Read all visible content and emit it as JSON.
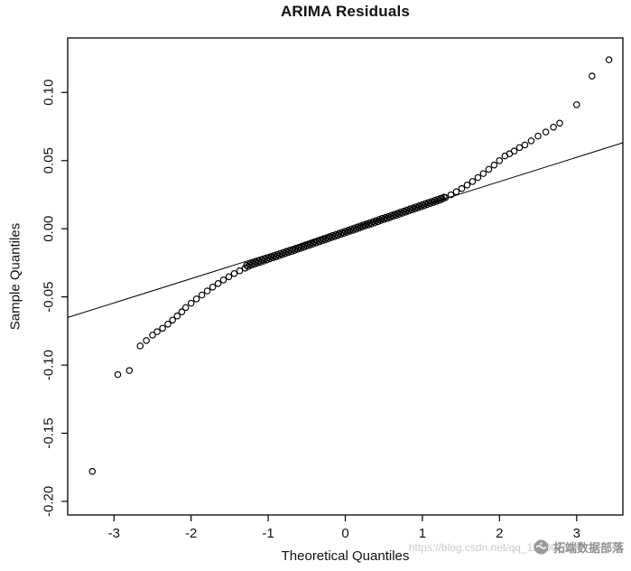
{
  "figure": {
    "title": "ARIMA Residuals"
  },
  "chart_data": {
    "type": "scatter",
    "subtype": "qq-plot",
    "title": "ARIMA Residuals",
    "xlabel": "Theoretical Quantiles",
    "ylabel": "Sample Quantiles",
    "xlim": [
      -3.6,
      3.6
    ],
    "ylim": [
      -0.21,
      0.14
    ],
    "grid": false,
    "legend": "none",
    "marker": "open-circle",
    "marker_color": "#000000",
    "x_ticks": [
      -3,
      -2,
      -1,
      0,
      1,
      2,
      3
    ],
    "x_tick_labels": [
      "-3",
      "-2",
      "-1",
      "0",
      "1",
      "2",
      "3"
    ],
    "y_ticks": [
      0.1,
      0.05,
      0,
      -0.05,
      -0.1,
      -0.15,
      -0.2
    ],
    "y_tick_labels": [
      "0.10",
      "0.05",
      "0.00",
      "-0.05",
      "-0.10",
      "-0.15",
      "-0.20"
    ],
    "reference_line": {
      "slope": 0.0178,
      "intercept": -0.001,
      "color": "#000000"
    },
    "points": [
      [
        -3.28,
        -0.178
      ],
      [
        -2.95,
        -0.107
      ],
      [
        -2.8,
        -0.104
      ],
      [
        -2.66,
        -0.086
      ],
      [
        -2.58,
        -0.082
      ],
      [
        -2.5,
        -0.078
      ],
      [
        -2.44,
        -0.0755
      ],
      [
        -2.37,
        -0.073
      ],
      [
        -2.3,
        -0.07
      ],
      [
        -2.24,
        -0.067
      ],
      [
        -2.18,
        -0.064
      ],
      [
        -2.12,
        -0.061
      ],
      [
        -2.07,
        -0.0578
      ],
      [
        -2.0,
        -0.0546
      ],
      [
        -1.93,
        -0.0515
      ],
      [
        -1.86,
        -0.0486
      ],
      [
        -1.79,
        -0.0456
      ],
      [
        -1.72,
        -0.0428
      ],
      [
        -1.65,
        -0.0402
      ],
      [
        -1.58,
        -0.0376
      ],
      [
        -1.51,
        -0.0352
      ],
      [
        -1.44,
        -0.0329
      ],
      [
        -1.37,
        -0.0308
      ],
      [
        -1.3,
        -0.0289
      ],
      [
        -1.26,
        -0.0278
      ],
      [
        -1.22,
        -0.0268
      ],
      [
        -1.18,
        -0.026
      ],
      [
        -1.14,
        -0.0252
      ],
      [
        -1.1,
        -0.0245
      ],
      [
        -1.06,
        -0.0237
      ],
      [
        -1.02,
        -0.0229
      ],
      [
        -0.98,
        -0.0221
      ],
      [
        -0.94,
        -0.0213
      ],
      [
        -0.9,
        -0.0206
      ],
      [
        -0.86,
        -0.0198
      ],
      [
        -0.82,
        -0.019
      ],
      [
        -0.78,
        -0.0182
      ],
      [
        -0.74,
        -0.0174
      ],
      [
        -0.7,
        -0.0167
      ],
      [
        -0.66,
        -0.0159
      ],
      [
        -0.62,
        -0.0151
      ],
      [
        -0.58,
        -0.0143
      ],
      [
        -0.54,
        -0.0135
      ],
      [
        -0.5,
        -0.0128
      ],
      [
        -0.46,
        -0.012
      ],
      [
        -0.42,
        -0.0112
      ],
      [
        -0.38,
        -0.0104
      ],
      [
        -0.34,
        -0.0096
      ],
      [
        -0.3,
        -0.0089
      ],
      [
        -0.26,
        -0.0081
      ],
      [
        -0.22,
        -0.0073
      ],
      [
        -0.18,
        -0.0065
      ],
      [
        -0.14,
        -0.0057
      ],
      [
        -0.1,
        -0.005
      ],
      [
        -0.06,
        -0.0042
      ],
      [
        -0.02,
        -0.0034
      ],
      [
        0.02,
        -0.0026
      ],
      [
        0.06,
        -0.0018
      ],
      [
        0.1,
        -0.0011
      ],
      [
        0.14,
        -0.0003
      ],
      [
        0.18,
        0.0005
      ],
      [
        0.22,
        0.0013
      ],
      [
        0.26,
        0.0021
      ],
      [
        0.3,
        0.0029
      ],
      [
        0.34,
        0.0036
      ],
      [
        0.38,
        0.0044
      ],
      [
        0.42,
        0.0052
      ],
      [
        0.46,
        0.006
      ],
      [
        0.5,
        0.0068
      ],
      [
        0.54,
        0.0075
      ],
      [
        0.58,
        0.0083
      ],
      [
        0.62,
        0.0091
      ],
      [
        0.66,
        0.0099
      ],
      [
        0.7,
        0.0107
      ],
      [
        0.74,
        0.0114
      ],
      [
        0.78,
        0.0122
      ],
      [
        0.82,
        0.013
      ],
      [
        0.86,
        0.0138
      ],
      [
        0.9,
        0.0146
      ],
      [
        0.94,
        0.0153
      ],
      [
        0.98,
        0.0161
      ],
      [
        1.02,
        0.0169
      ],
      [
        1.06,
        0.0177
      ],
      [
        1.1,
        0.0185
      ],
      [
        1.14,
        0.0192
      ],
      [
        1.18,
        0.02
      ],
      [
        1.22,
        0.0208
      ],
      [
        1.26,
        0.0218
      ],
      [
        1.3,
        0.0229
      ],
      [
        -1.28,
        -0.0268
      ],
      [
        -1.24,
        -0.026
      ],
      [
        -1.2,
        -0.0252
      ],
      [
        -1.16,
        -0.0244
      ],
      [
        -1.12,
        -0.0236
      ],
      [
        -1.08,
        -0.0229
      ],
      [
        -1.04,
        -0.0221
      ],
      [
        -1.0,
        -0.0213
      ],
      [
        -0.96,
        -0.0205
      ],
      [
        -0.92,
        -0.0197
      ],
      [
        -0.88,
        -0.019
      ],
      [
        -0.84,
        -0.0182
      ],
      [
        -0.8,
        -0.0174
      ],
      [
        -0.76,
        -0.0166
      ],
      [
        -0.72,
        -0.0158
      ],
      [
        -0.68,
        -0.0151
      ],
      [
        -0.64,
        -0.0143
      ],
      [
        -0.6,
        -0.0135
      ],
      [
        -0.56,
        -0.0127
      ],
      [
        -0.52,
        -0.0119
      ],
      [
        -0.48,
        -0.0112
      ],
      [
        -0.44,
        -0.0104
      ],
      [
        -0.4,
        -0.0096
      ],
      [
        -0.36,
        -0.0088
      ],
      [
        -0.32,
        -0.008
      ],
      [
        -0.28,
        -0.0073
      ],
      [
        -0.24,
        -0.0065
      ],
      [
        -0.2,
        -0.0057
      ],
      [
        -0.16,
        -0.0049
      ],
      [
        -0.12,
        -0.0041
      ],
      [
        -0.08,
        -0.0034
      ],
      [
        -0.04,
        -0.0026
      ],
      [
        0.0,
        -0.0018
      ],
      [
        0.04,
        -0.001
      ],
      [
        0.08,
        -0.0002
      ],
      [
        0.12,
        0.0005
      ],
      [
        0.16,
        0.0013
      ],
      [
        0.2,
        0.0021
      ],
      [
        0.24,
        0.0029
      ],
      [
        0.28,
        0.0037
      ],
      [
        0.32,
        0.0044
      ],
      [
        0.36,
        0.0052
      ],
      [
        0.4,
        0.006
      ],
      [
        0.44,
        0.0068
      ],
      [
        0.48,
        0.0076
      ],
      [
        0.52,
        0.0083
      ],
      [
        0.56,
        0.0091
      ],
      [
        0.6,
        0.0099
      ],
      [
        0.64,
        0.0107
      ],
      [
        0.68,
        0.0115
      ],
      [
        0.72,
        0.0122
      ],
      [
        0.76,
        0.013
      ],
      [
        0.8,
        0.0138
      ],
      [
        0.84,
        0.0146
      ],
      [
        0.88,
        0.0154
      ],
      [
        0.92,
        0.0161
      ],
      [
        0.96,
        0.0169
      ],
      [
        1.0,
        0.0177
      ],
      [
        1.04,
        0.0185
      ],
      [
        1.08,
        0.0193
      ],
      [
        1.12,
        0.02
      ],
      [
        1.16,
        0.0208
      ],
      [
        1.2,
        0.0216
      ],
      [
        1.24,
        0.0224
      ],
      [
        1.28,
        0.0232
      ],
      [
        1.37,
        0.0249
      ],
      [
        1.44,
        0.0271
      ],
      [
        1.51,
        0.0295
      ],
      [
        1.58,
        0.0321
      ],
      [
        1.65,
        0.0347
      ],
      [
        1.72,
        0.0376
      ],
      [
        1.79,
        0.0405
      ],
      [
        1.86,
        0.0436
      ],
      [
        1.93,
        0.0467
      ],
      [
        2.0,
        0.05
      ],
      [
        2.07,
        0.0534
      ],
      [
        2.13,
        0.055
      ],
      [
        2.19,
        0.057
      ],
      [
        2.26,
        0.0595
      ],
      [
        2.33,
        0.0615
      ],
      [
        2.41,
        0.0645
      ],
      [
        2.5,
        0.068
      ],
      [
        2.6,
        0.071
      ],
      [
        2.7,
        0.0745
      ],
      [
        2.78,
        0.0775
      ],
      [
        3.0,
        0.091
      ],
      [
        3.2,
        0.112
      ],
      [
        3.42,
        0.124
      ]
    ]
  },
  "watermark": {
    "logo_icon": "tuoduan-badge-icon",
    "text": "拓端数据部落",
    "url_text": "https://blog.csdn.net/qq_15000251",
    "text_color": "#8f8f8f",
    "url_color": "#cbcbcb"
  }
}
